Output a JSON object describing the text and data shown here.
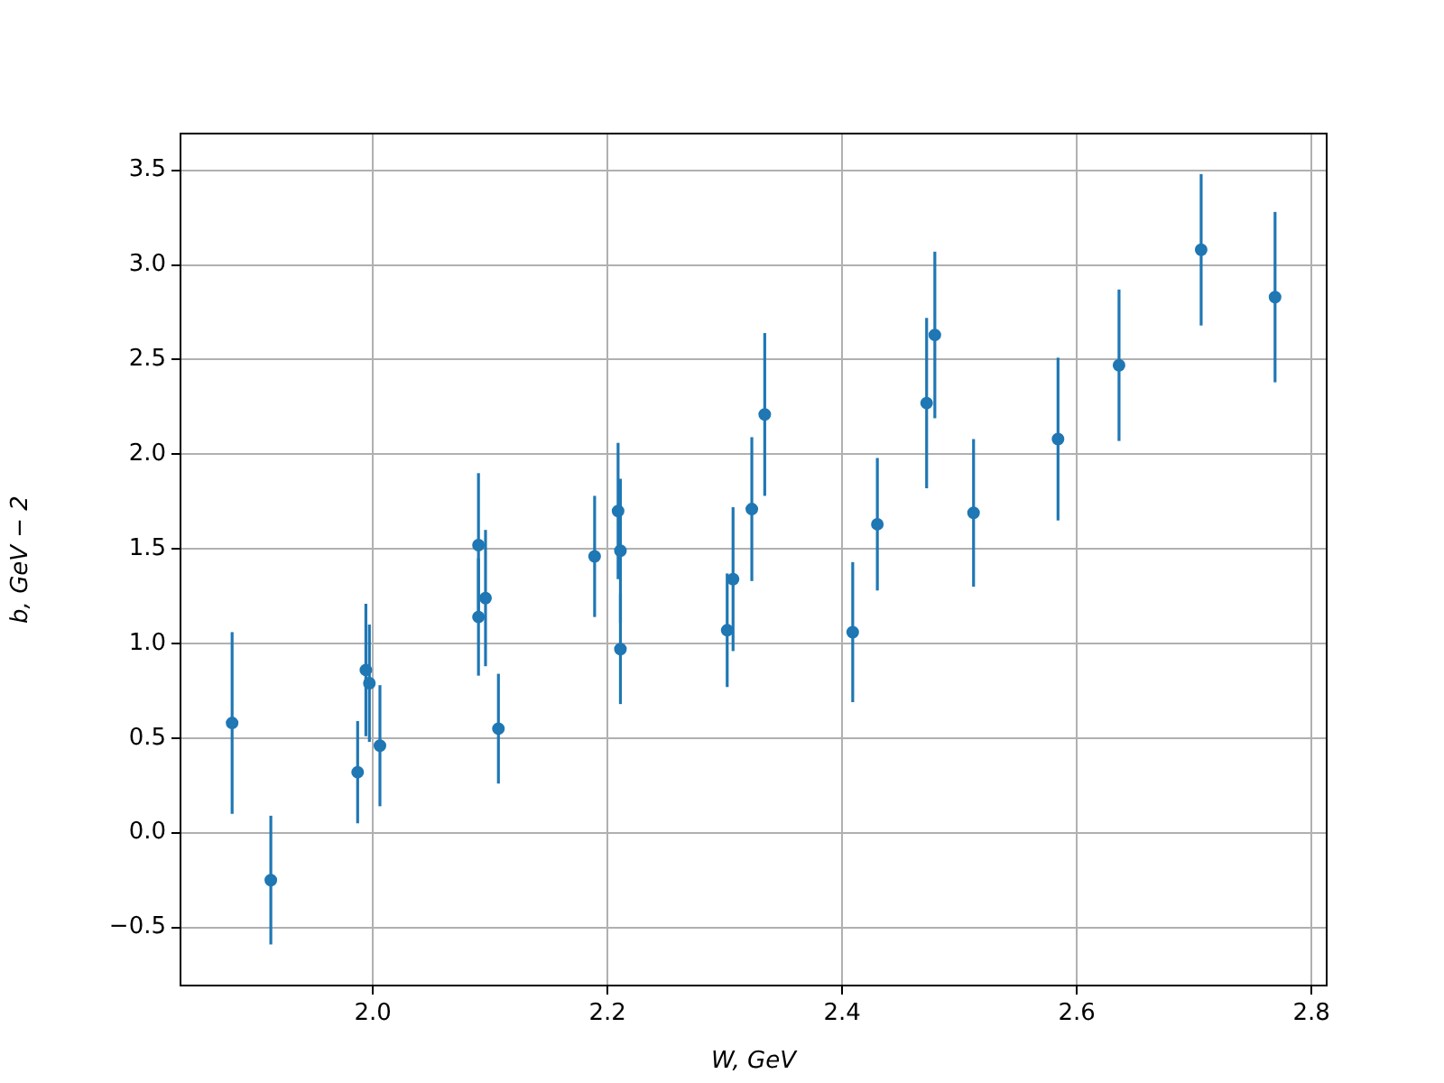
{
  "chart_data": {
    "type": "scatter",
    "xlabel": "W, GeV",
    "ylabel": "b, GeV − 2",
    "x": [
      1.88,
      1.913,
      1.987,
      1.994,
      1.997,
      2.006,
      2.09,
      2.09,
      2.096,
      2.107,
      2.189,
      2.209,
      2.211,
      2.211,
      2.302,
      2.307,
      2.323,
      2.334,
      2.409,
      2.43,
      2.472,
      2.479,
      2.512,
      2.584,
      2.636,
      2.706,
      2.769
    ],
    "series": [
      {
        "color": "#1f77b4",
        "values": [
          0.58,
          -0.25,
          0.32,
          0.86,
          0.79,
          0.46,
          1.52,
          1.14,
          1.24,
          0.55,
          1.46,
          1.7,
          1.49,
          0.97,
          1.07,
          1.34,
          1.71,
          2.21,
          1.06,
          1.63,
          2.27,
          2.63,
          1.69,
          2.08,
          2.47,
          3.08,
          2.83
        ],
        "errors": [
          0.48,
          0.34,
          0.27,
          0.35,
          0.31,
          0.32,
          0.38,
          0.31,
          0.36,
          0.29,
          0.32,
          0.36,
          0.38,
          0.29,
          0.3,
          0.38,
          0.38,
          0.43,
          0.37,
          0.35,
          0.45,
          0.44,
          0.39,
          0.43,
          0.4,
          0.4,
          0.45
        ]
      }
    ],
    "xlim": [
      1.836,
      2.813
    ],
    "xticks": [
      {
        "value": 2.0,
        "label": "2.0"
      },
      {
        "value": 2.2,
        "label": "2.2"
      },
      {
        "value": 2.4,
        "label": "2.4"
      },
      {
        "value": 2.6,
        "label": "2.6"
      },
      {
        "value": 2.8,
        "label": "2.8"
      }
    ],
    "ylim": [
      -0.807,
      3.694
    ],
    "yticks": [
      {
        "value": -0.5,
        "label": "−0.5"
      },
      {
        "value": 0,
        "label": "0.0"
      },
      {
        "value": 0.5,
        "label": "0.5"
      },
      {
        "value": 1.0,
        "label": "1.0"
      },
      {
        "value": 1.5,
        "label": "1.5"
      },
      {
        "value": 2.0,
        "label": "2.0"
      },
      {
        "value": 2.5,
        "label": "2.5"
      },
      {
        "value": 3.0,
        "label": "3.0"
      },
      {
        "value": 3.5,
        "label": "3.5"
      }
    ],
    "grid": true,
    "marker": "circle",
    "legend": false
  }
}
